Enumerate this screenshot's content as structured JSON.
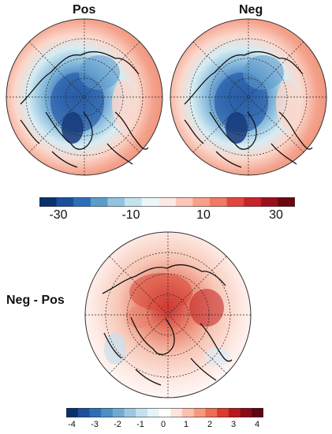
{
  "panels": [
    {
      "title": "Pos"
    },
    {
      "title": "Neg"
    },
    {
      "title": "Neg - Pos"
    }
  ],
  "colorbar_top": {
    "colors": [
      "#08306b",
      "#1b4f9c",
      "#2d6fb6",
      "#5c9ccc",
      "#93c3df",
      "#c5e3ee",
      "#ecf6f8",
      "#fde8e4",
      "#fcc6b8",
      "#f7a08a",
      "#f07a64",
      "#e0473c",
      "#c6232b",
      "#9b0e1e",
      "#6b0513"
    ],
    "ticks": [
      "-30",
      "-10",
      "10",
      "30"
    ]
  },
  "colorbar_bottom": {
    "colors": [
      "#08306b",
      "#1b4f9c",
      "#2d6fb6",
      "#4e8ec4",
      "#73aad4",
      "#9cc7e2",
      "#c4e1ee",
      "#e6f3f8",
      "#ffffff",
      "#fde4dc",
      "#fbc1ad",
      "#f69a7e",
      "#ee6e52",
      "#dc3a2e",
      "#b8171f",
      "#8a0b16",
      "#5e0510"
    ],
    "ticks": [
      "-4",
      "-3",
      "-2",
      "-1",
      "0",
      "1",
      "2",
      "3",
      "4"
    ]
  }
}
